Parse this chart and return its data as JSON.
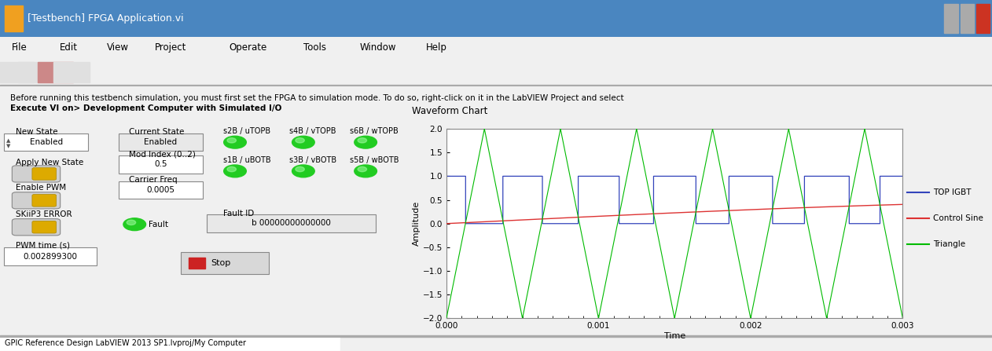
{
  "title_bar": "[Testbench] FPGA Application.vi",
  "menu_items": [
    "File",
    "Edit",
    "View",
    "Project",
    "Operate",
    "Tools",
    "Window",
    "Help"
  ],
  "info_text1": "Before running this testbench simulation, you must first set the FPGA to simulation mode. To do so, right-click on it in the LabVIEW Project and select ",
  "info_text2": "Execute VI on> Development Computer with Simulated I/O",
  "ui_bg": "#f0f0f0",
  "titlebar_bg": "#4a7fbd",
  "titlebar_text_color": "white",
  "menu_bg": "#f0f0f0",
  "chart_title": "Waveform Chart",
  "chart_xlabel": "Time",
  "chart_ylabel": "Amplitude",
  "chart_xlim": [
    0.0,
    0.003
  ],
  "chart_ylim": [
    -2.0,
    2.0
  ],
  "chart_yticks": [
    -2.0,
    -1.5,
    -1.0,
    -0.5,
    0.0,
    0.5,
    1.0,
    1.5,
    2.0
  ],
  "chart_xticks": [
    0.0,
    0.001,
    0.002,
    0.003
  ],
  "chart_xtick_labels": [
    "0.000",
    "0.001",
    "0.002",
    "0.003"
  ],
  "chart_bg": "#c8c8c8",
  "triangle_color": "#00bb00",
  "sine_color": "#dd3333",
  "pwm_color": "#3344bb",
  "triangle_freq": 2000,
  "sine_freq": 50,
  "mod_index": 0.5,
  "pwm_high": 1.0,
  "pwm_low": 0.0,
  "legend_labels": [
    "TOP IGBT",
    "Control Sine",
    "Triangle"
  ],
  "legend_colors": [
    "#3344bb",
    "#dd3333",
    "#00bb00"
  ],
  "label_new_state": "New State",
  "val_new_state": "Enabled",
  "label_current_state": "Current State",
  "val_current_state": "Enabled",
  "label_apply_new_state": "Apply New State",
  "label_enable_pwm": "Enable PWM",
  "label_skiip3": "SKiiP3 ERROR",
  "label_pwm_time": "PWM time (s)",
  "val_pwm_time": "0.002899300",
  "label_mod_index": "Mod Index (0..2)",
  "val_mod_index": "0.5",
  "label_carrier_freq": "Carrier Freq",
  "val_carrier_freq": "0.0005",
  "label_fault": "Fault",
  "label_fault_id": "Fault ID",
  "val_fault_id": "b 00000000000000",
  "label_s2b": "s2B / uTOPB",
  "label_s4b": "s4B / vTOPB",
  "label_s6b": "s6B / wTOPB",
  "label_s1b": "s1B / uBOTB",
  "label_s3b": "s3B / vBOTB",
  "label_s5b": "s5B / wBOTB",
  "status_text": "GPIC Reference Design LabVIEW 2013 SP1.lvproj/My Computer",
  "green_led_color": "#22cc22",
  "yellow_color": "#ddaa00",
  "red_color": "#cc2222"
}
